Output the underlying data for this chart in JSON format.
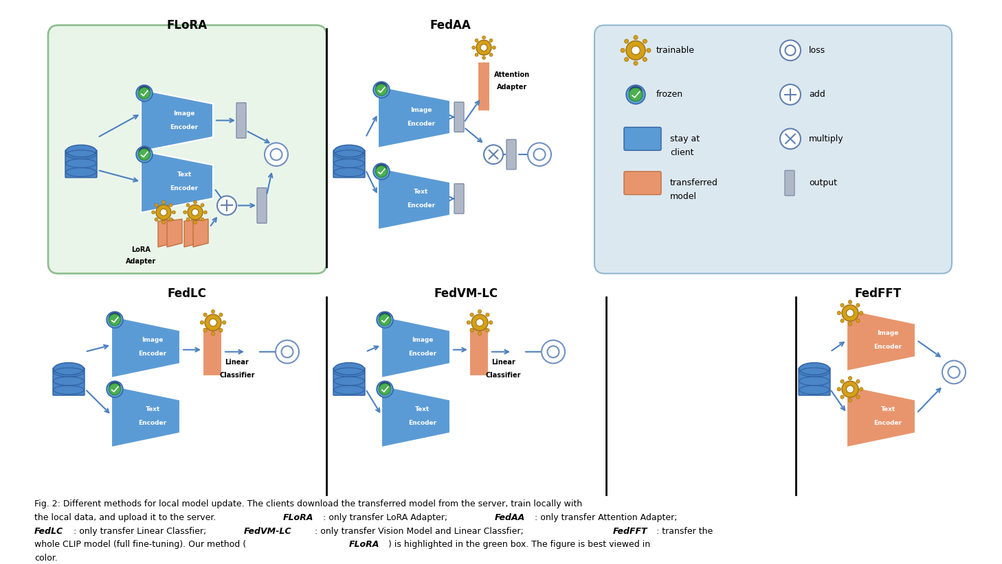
{
  "bg_color": "#ffffff",
  "title_flora": "FLoRA",
  "title_fedaa": "FedAA",
  "title_fedlc": "FedLC",
  "title_fedvmlc": "FedVM-LC",
  "title_fedfft": "FedFFT",
  "color_blue_encoder": "#5b9bd5",
  "color_orange_deep": "#e8956d",
  "color_gray_output": "#b0b8c8",
  "color_green_box": "#eaf5ea",
  "color_green_border": "#90c090",
  "color_legend_box": "#dce8f0",
  "color_legend_border": "#90b8d0",
  "color_db_blue": "#4a86c8",
  "arrow_color": "#4a7fc0"
}
